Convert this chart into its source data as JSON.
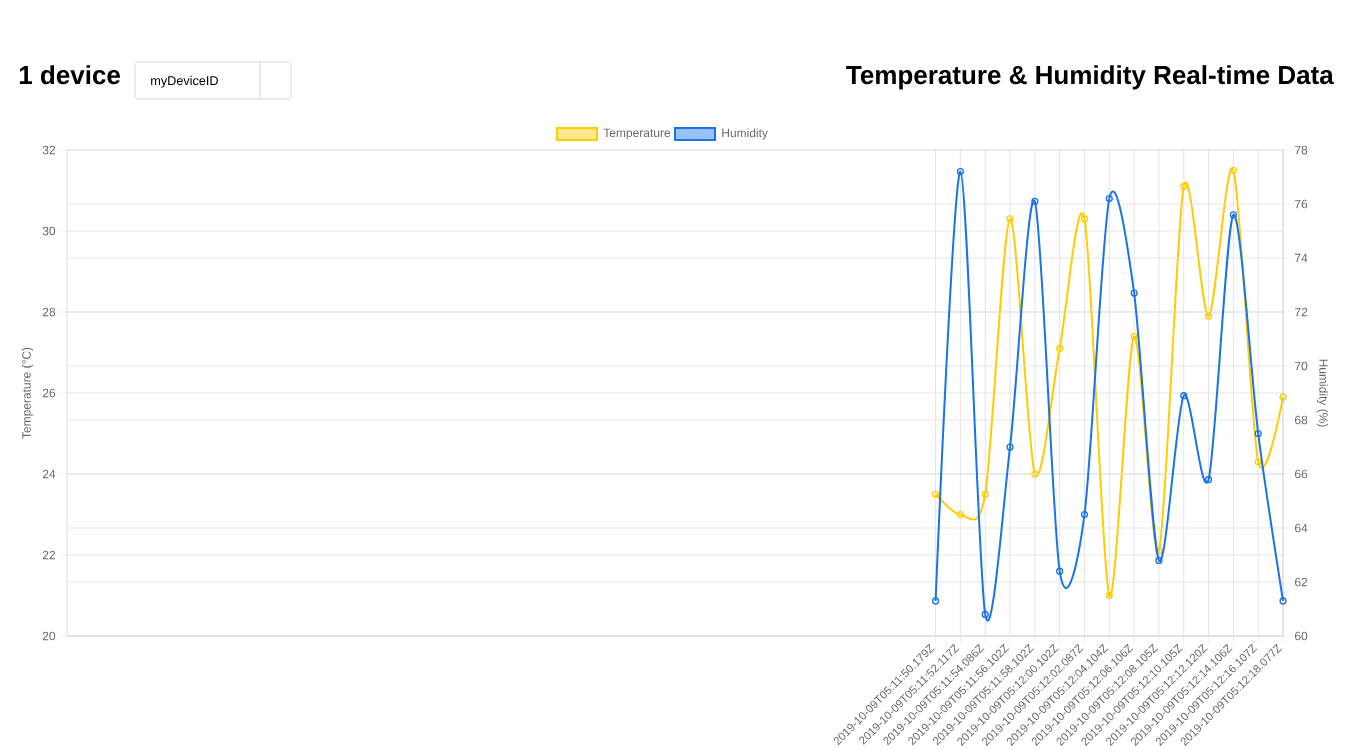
{
  "chart_data": {
    "type": "line",
    "title": "Temperature & Humidity Real-time Data",
    "annotations": [
      "1 device",
      "myDeviceID"
    ],
    "xlabel": null,
    "ylabel": "Temperature (°C)",
    "y2label": "Humidity (%)",
    "categories": [
      null,
      null,
      null,
      null,
      null,
      null,
      null,
      null,
      null,
      null,
      null,
      null,
      null,
      null,
      null,
      null,
      null,
      null,
      null,
      null,
      null,
      null,
      null,
      null,
      null,
      null,
      null,
      null,
      null,
      null,
      null,
      null,
      null,
      null,
      null,
      "2019-10-09T05:11:50.179Z",
      "2019-10-09T05:11:52.117Z",
      "2019-10-09T05:11:54.086Z",
      "2019-10-09T05:11:56.102Z",
      "2019-10-09T05:11:58.102Z",
      "2019-10-09T05:12:00.102Z",
      "2019-10-09T05:12:02.087Z",
      "2019-10-09T05:12:04.104Z",
      "2019-10-09T05:12:06.106Z",
      "2019-10-09T05:12:08.105Z",
      "2019-10-09T05:12:10.105Z",
      "2019-10-09T05:12:12.120Z",
      "2019-10-09T05:12:14.106Z",
      "2019-10-09T05:12:16.107Z",
      "2019-10-09T05:12:18.077Z"
    ],
    "series": [
      {
        "name": "Temperature",
        "color": "#ffcc00",
        "values": [
          null,
          null,
          null,
          null,
          null,
          null,
          null,
          null,
          null,
          null,
          null,
          null,
          null,
          null,
          null,
          null,
          null,
          null,
          null,
          null,
          null,
          null,
          null,
          null,
          null,
          null,
          null,
          null,
          null,
          null,
          null,
          null,
          null,
          null,
          null,
          23.5,
          23.0,
          23.5,
          30.3,
          24.0,
          27.1,
          30.3,
          21.0,
          27.4,
          22.1,
          31.1,
          27.9,
          31.5,
          24.3,
          25.9
        ]
      },
      {
        "name": "Humidity",
        "color": "#1a73e8",
        "axis": "y2",
        "values": [
          null,
          null,
          null,
          null,
          null,
          null,
          null,
          null,
          null,
          null,
          null,
          null,
          null,
          null,
          null,
          null,
          null,
          null,
          null,
          null,
          null,
          null,
          null,
          null,
          null,
          null,
          null,
          null,
          null,
          null,
          null,
          null,
          null,
          null,
          null,
          61.3,
          77.2,
          60.8,
          67.0,
          76.1,
          62.4,
          64.5,
          76.2,
          72.7,
          62.8,
          68.9,
          65.8,
          75.6,
          67.5,
          61.3
        ]
      }
    ],
    "ylim": [
      20,
      32
    ],
    "yticks": [
      20,
      22,
      24,
      26,
      28,
      30,
      32
    ],
    "y2lim": [
      60,
      78
    ],
    "y2ticks": [
      60,
      62,
      64,
      66,
      68,
      70,
      72,
      74,
      76,
      78
    ],
    "grid": true,
    "legend": "top",
    "marker": "circle",
    "line_style": "solid"
  }
}
